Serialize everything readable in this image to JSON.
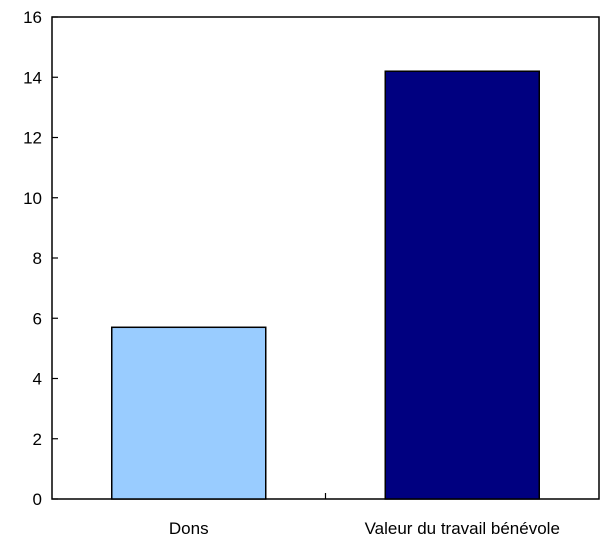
{
  "chart_data": {
    "type": "bar",
    "categories": [
      "Dons",
      "Valeur du travail bénévole"
    ],
    "values": [
      5.7,
      14.2
    ],
    "colors": [
      "#99ccff",
      "#000080"
    ],
    "title": "",
    "xlabel": "",
    "ylabel": "",
    "ylim": [
      0,
      16
    ],
    "yticks": [
      "0",
      "2",
      "4",
      "6",
      "8",
      "10",
      "12",
      "14",
      "16"
    ],
    "grid": false,
    "legend": "none"
  }
}
